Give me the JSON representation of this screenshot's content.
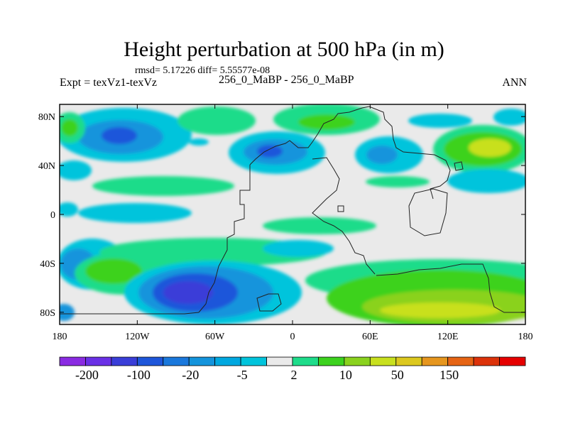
{
  "figure": {
    "title": "Height perturbation at 500 hPa (in m)",
    "stats": "rmsd= 5.17226 diff= 5.55577e-08",
    "left_label": "Expt = texVz1-texVz",
    "center_label": "256_0_MaBP - 256_0_MaBP",
    "right_label": "ANN"
  },
  "chart_data": {
    "type": "heatmap",
    "title": "Height perturbation at 500 hPa (in m)",
    "x_ticks": [
      "180",
      "120W",
      "60W",
      "0",
      "60E",
      "120E",
      "180"
    ],
    "y_ticks": [
      "80N",
      "40N",
      "0",
      "40S",
      "80S"
    ],
    "xlim": [
      -180,
      180
    ],
    "ylim": [
      -90,
      90
    ],
    "colorbar": {
      "labels": [
        "-200",
        "-100",
        "-20",
        "-5",
        "2",
        "10",
        "50",
        "150"
      ],
      "colors": [
        "#8a2be2",
        "#6a30e6",
        "#3a3ed8",
        "#1e56da",
        "#1a78dc",
        "#1494dc",
        "#00a8e0",
        "#00c4dc",
        "#eaeaea",
        "#1edc8a",
        "#3cd21e",
        "#8ad21e",
        "#c8e01e",
        "#dcc81e",
        "#e6961e",
        "#e66414",
        "#dc320a",
        "#e60000"
      ]
    }
  }
}
